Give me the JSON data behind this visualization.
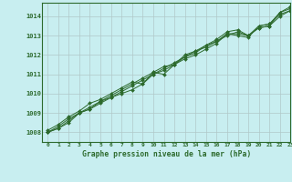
{
  "title": "Graphe pression niveau de la mer (hPa)",
  "background_color": "#c8eef0",
  "grid_color": "#b0c8c8",
  "line_color": "#2d6a2d",
  "xlim": [
    -0.5,
    23
  ],
  "ylim": [
    1007.5,
    1014.7
  ],
  "yticks": [
    1008,
    1009,
    1010,
    1011,
    1012,
    1013,
    1014
  ],
  "xticks": [
    0,
    1,
    2,
    3,
    4,
    5,
    6,
    7,
    8,
    9,
    10,
    11,
    12,
    13,
    14,
    15,
    16,
    17,
    18,
    19,
    20,
    21,
    22,
    23
  ],
  "series": [
    [
      1008.0,
      1008.2,
      1008.5,
      1009.0,
      1009.2,
      1009.5,
      1009.8,
      1010.0,
      1010.2,
      1010.5,
      1011.0,
      1011.2,
      1011.5,
      1011.8,
      1012.0,
      1012.3,
      1012.6,
      1013.1,
      1013.0,
      1012.9,
      1013.5,
      1013.6,
      1014.1,
      1014.3
    ],
    [
      1008.0,
      1008.3,
      1008.7,
      1009.0,
      1009.3,
      1009.6,
      1009.9,
      1010.2,
      1010.5,
      1010.8,
      1011.1,
      1011.4,
      1011.5,
      1012.0,
      1012.2,
      1012.5,
      1012.7,
      1013.1,
      1013.1,
      1013.0,
      1013.4,
      1013.5,
      1014.2,
      1014.4
    ],
    [
      1008.1,
      1008.4,
      1008.8,
      1009.1,
      1009.5,
      1009.7,
      1010.0,
      1010.3,
      1010.6,
      1010.5,
      1011.1,
      1011.0,
      1011.5,
      1011.9,
      1012.1,
      1012.5,
      1012.8,
      1013.2,
      1013.3,
      1013.0,
      1013.5,
      1013.6,
      1014.2,
      1014.5
    ],
    [
      1008.0,
      1008.2,
      1008.6,
      1009.0,
      1009.2,
      1009.6,
      1009.8,
      1010.1,
      1010.4,
      1010.7,
      1011.0,
      1011.3,
      1011.6,
      1011.9,
      1012.2,
      1012.4,
      1012.7,
      1013.0,
      1013.2,
      1013.0,
      1013.4,
      1013.5,
      1014.0,
      1014.3
    ]
  ]
}
